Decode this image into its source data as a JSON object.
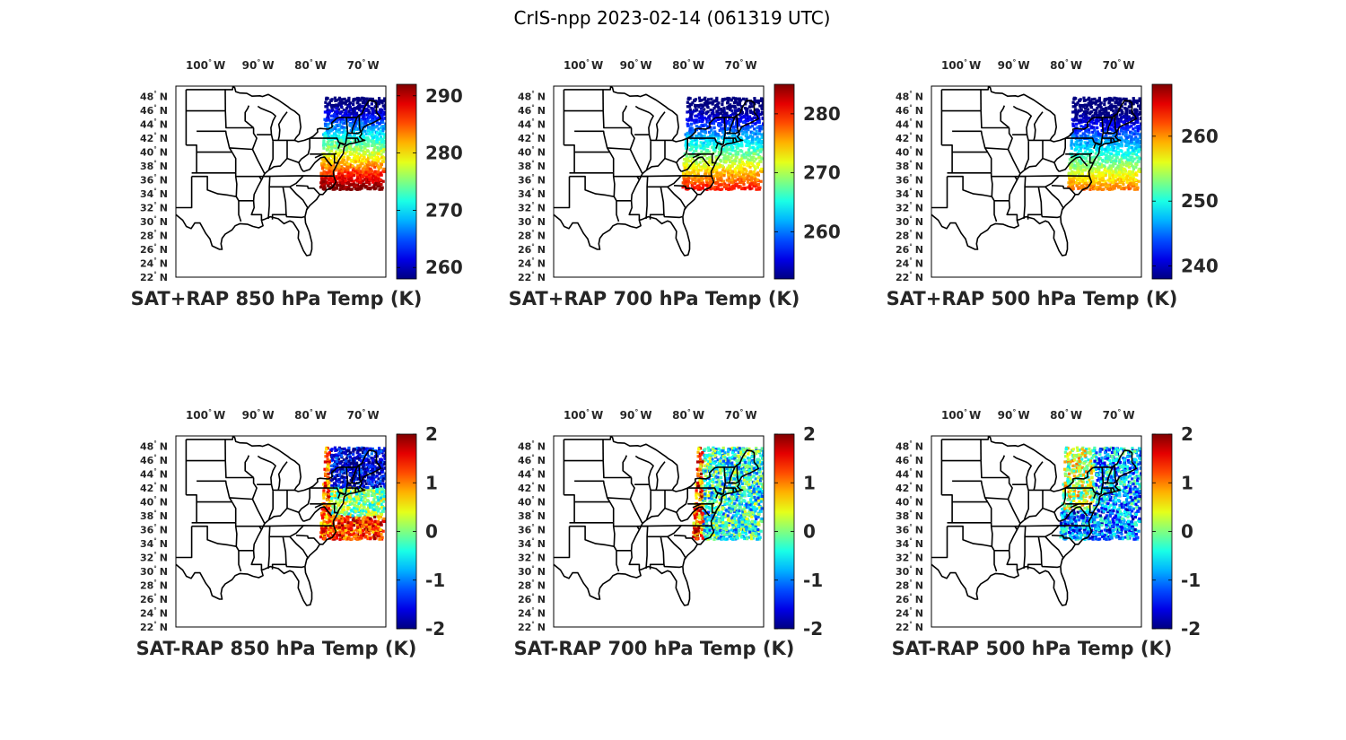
{
  "figure": {
    "title": "CrIS-npp 2023-02-14 (061319 UTC)"
  },
  "axes": {
    "lon_ticks": [
      {
        "deg": "100",
        "hem": "W"
      },
      {
        "deg": "90",
        "hem": "W"
      },
      {
        "deg": "80",
        "hem": "W"
      },
      {
        "deg": "70",
        "hem": "W"
      }
    ],
    "lat_ticks": [
      {
        "deg": "48",
        "hem": "N"
      },
      {
        "deg": "46",
        "hem": "N"
      },
      {
        "deg": "44",
        "hem": "N"
      },
      {
        "deg": "42",
        "hem": "N"
      },
      {
        "deg": "40",
        "hem": "N"
      },
      {
        "deg": "38",
        "hem": "N"
      },
      {
        "deg": "36",
        "hem": "N"
      },
      {
        "deg": "34",
        "hem": "N"
      },
      {
        "deg": "32",
        "hem": "N"
      },
      {
        "deg": "30",
        "hem": "N"
      },
      {
        "deg": "28",
        "hem": "N"
      },
      {
        "deg": "26",
        "hem": "N"
      },
      {
        "deg": "24",
        "hem": "N"
      },
      {
        "deg": "22",
        "hem": "N"
      }
    ],
    "lon_range": [
      -106,
      -66
    ],
    "lat_range": [
      22,
      49.5
    ]
  },
  "panels": [
    {
      "title": "SAT+RAP 850 hPa Temp (K)",
      "colorbar_ticks": [
        "290",
        "280",
        "270",
        "260"
      ],
      "clim": [
        258,
        292
      ],
      "colormap": "jet",
      "field": "sum850"
    },
    {
      "title": "SAT+RAP 700 hPa Temp (K)",
      "colorbar_ticks": [
        "280",
        "270",
        "260"
      ],
      "clim": [
        252,
        285
      ],
      "colormap": "jet",
      "field": "sum700"
    },
    {
      "title": "SAT+RAP 500 hPa Temp (K)",
      "colorbar_ticks": [
        "260",
        "250",
        "240"
      ],
      "clim": [
        238,
        268
      ],
      "colormap": "jet",
      "field": "sum500"
    },
    {
      "title": "SAT-RAP 850 hPa Temp (K)",
      "colorbar_ticks": [
        "2",
        "1",
        "0",
        "-1",
        "-2"
      ],
      "clim": [
        -2,
        2
      ],
      "colormap": "jet",
      "field": "diff850"
    },
    {
      "title": "SAT-RAP 700 hPa Temp (K)",
      "colorbar_ticks": [
        "2",
        "1",
        "0",
        "-1",
        "-2"
      ],
      "clim": [
        -2,
        2
      ],
      "colormap": "jet",
      "field": "diff700"
    },
    {
      "title": "SAT-RAP 500 hPa Temp (K)",
      "colorbar_ticks": [
        "2",
        "1",
        "0",
        "-1",
        "-2"
      ],
      "clim": [
        -2,
        2
      ],
      "colormap": "jet",
      "field": "diff500"
    }
  ],
  "colors": {
    "state_lines": "#000000",
    "frame": "#000000",
    "tick_text": "#262626",
    "title_text": "#000000"
  }
}
